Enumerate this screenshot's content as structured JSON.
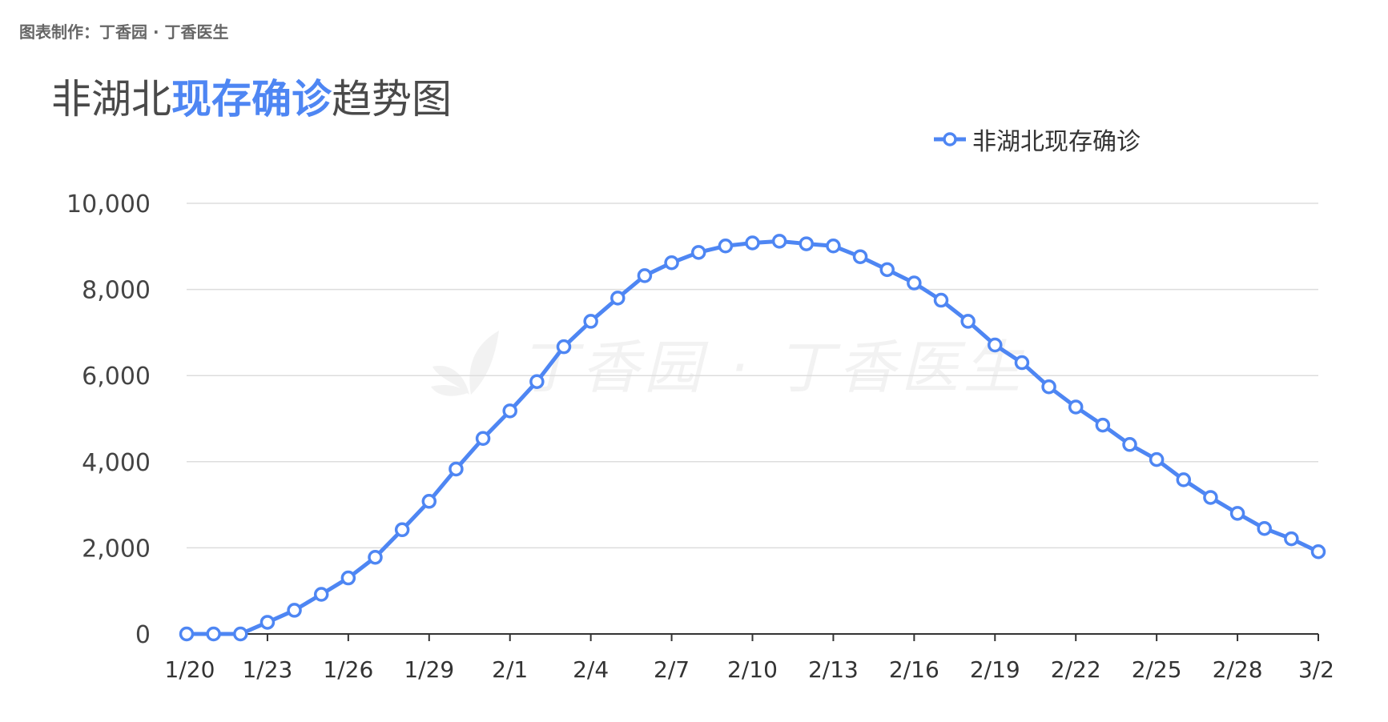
{
  "header": {
    "credit": "图表制作：丁香园 · 丁香医生",
    "title_pre": "非湖北",
    "title_highlight": "现存确诊",
    "title_post": "趋势图"
  },
  "watermark": {
    "text": "丁香园 · 丁香医生"
  },
  "colors": {
    "series": "#4e86f3",
    "grid": "#dddddd",
    "axis": "#333333",
    "text": "#333333"
  },
  "chart_data": {
    "type": "line",
    "title": "非湖北现存确诊趋势图",
    "xlabel": "",
    "ylabel": "",
    "ylim": [
      0,
      10000
    ],
    "yticks": [
      0,
      2000,
      4000,
      6000,
      8000,
      10000
    ],
    "ytick_labels": [
      "0",
      "2,000",
      "4,000",
      "6,000",
      "8,000",
      "10,000"
    ],
    "xtick_labels": [
      "1/20",
      "1/23",
      "1/26",
      "1/29",
      "2/1",
      "2/4",
      "2/7",
      "2/10",
      "2/13",
      "2/16",
      "2/19",
      "2/22",
      "2/25",
      "2/28",
      "3/2"
    ],
    "grid": true,
    "legend_position": "top-right",
    "x": [
      "1/20",
      "1/21",
      "1/22",
      "1/23",
      "1/24",
      "1/25",
      "1/26",
      "1/27",
      "1/28",
      "1/29",
      "1/30",
      "1/31",
      "2/1",
      "2/2",
      "2/3",
      "2/4",
      "2/5",
      "2/6",
      "2/7",
      "2/8",
      "2/9",
      "2/10",
      "2/11",
      "2/12",
      "2/13",
      "2/14",
      "2/15",
      "2/16",
      "2/17",
      "2/18",
      "2/19",
      "2/20",
      "2/21",
      "2/22",
      "2/23",
      "2/24",
      "2/25",
      "2/26",
      "2/27",
      "2/28",
      "2/29",
      "3/1",
      "3/2"
    ],
    "series": [
      {
        "name": "非湖北现存确诊",
        "values": [
          0,
          0,
          0,
          270,
          550,
          920,
          1300,
          1780,
          2420,
          3080,
          3830,
          4540,
          5180,
          5860,
          6670,
          7260,
          7800,
          8320,
          8620,
          8860,
          9010,
          9080,
          9120,
          9060,
          9010,
          8760,
          8460,
          8150,
          7750,
          7260,
          6710,
          6300,
          5740,
          5270,
          4850,
          4400,
          4050,
          3580,
          3170,
          2800,
          2450,
          2210,
          1910
        ]
      }
    ]
  }
}
